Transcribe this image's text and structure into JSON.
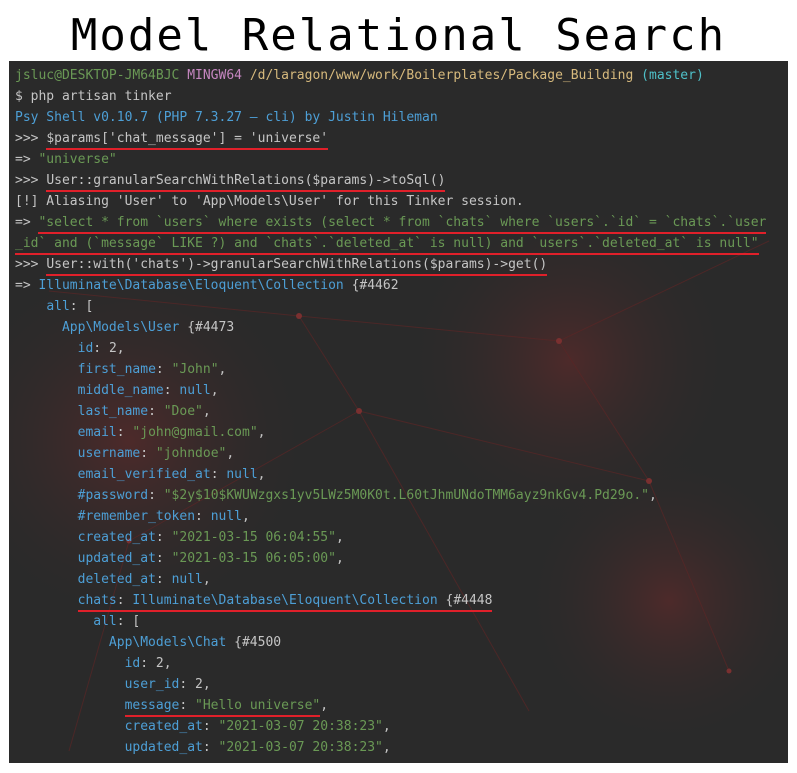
{
  "title": "Model Relational Search",
  "prompt": {
    "user": "jsluc@DESKTOP-JM64BJC",
    "env": "MINGW64",
    "path": "/d/laragon/www/work/Boilerplates/Package_Building",
    "branch": "(master)"
  },
  "cmd1": "$ php artisan tinker",
  "psy": "Psy Shell v0.10.7 (PHP 7.3.27 — cli) by Justin Hileman",
  "in1_prompt": ">>> ",
  "in1_code": "$params['chat_message'] = 'universe'",
  "out1_arrow": "=> ",
  "out1_value": "\"universe\"",
  "in2_prompt": ">>> ",
  "in2_code": "User::granularSearchWithRelations($params)->toSql()",
  "alias_note": "[!] Aliasing 'User' to 'App\\Models\\User' for this Tinker session.",
  "out2_arrow": "=> ",
  "sql_line1": "\"select * from `users` where exists (select * from `chats` where `users`.`id` = `chats`.`user",
  "sql_line2": "_id` and (`message` LIKE ?) and `chats`.`deleted_at` is null) and `users`.`deleted_at` is null\"",
  "in3_prompt": ">>> ",
  "in3_code": "User::with('chats')->granularSearchWithRelations($params)->get()",
  "out3_arrow": "=> ",
  "collection1": "Illuminate\\Database\\Eloquent\\Collection",
  "collection1_id": "{#4462",
  "all_key": "all",
  "all_open": ": [",
  "user_model": "App\\Models\\User",
  "user_model_id": "{#4473",
  "user_fields": [
    {
      "key": "id",
      "value": "2",
      "kind": "num"
    },
    {
      "key": "first_name",
      "value": "\"John\"",
      "kind": "str"
    },
    {
      "key": "middle_name",
      "value": "null",
      "kind": "null"
    },
    {
      "key": "last_name",
      "value": "\"Doe\"",
      "kind": "str"
    },
    {
      "key": "email",
      "value": "\"john@gmail.com\"",
      "kind": "str"
    },
    {
      "key": "username",
      "value": "\"johndoe\"",
      "kind": "str"
    },
    {
      "key": "email_verified_at",
      "value": "null",
      "kind": "null"
    },
    {
      "key": "#password",
      "value": "\"$2y$10$KWUWzgxs1yv5LWz5M0K0t.L60tJhmUNdoTMM6ayz9nkGv4.Pd29o.\"",
      "kind": "str"
    },
    {
      "key": "#remember_token",
      "value": "null",
      "kind": "null"
    },
    {
      "key": "created_at",
      "value": "\"2021-03-15 06:04:55\"",
      "kind": "str"
    },
    {
      "key": "updated_at",
      "value": "\"2021-03-15 06:05:00\"",
      "kind": "str"
    },
    {
      "key": "deleted_at",
      "value": "null",
      "kind": "null"
    }
  ],
  "chats_key": "chats",
  "chats_collection": "Illuminate\\Database\\Eloquent\\Collection",
  "chats_collection_id": "{#4448",
  "chats_all_key": "all",
  "chats_all_open": ": [",
  "chat_model": "App\\Models\\Chat",
  "chat_model_id": "{#4500",
  "chat_fields": [
    {
      "key": "id",
      "value": "2",
      "kind": "num"
    },
    {
      "key": "user_id",
      "value": "2",
      "kind": "num"
    },
    {
      "key": "message",
      "value": "\"Hello universe\"",
      "kind": "str"
    },
    {
      "key": "created_at",
      "value": "\"2021-03-07 20:38:23\"",
      "kind": "str"
    },
    {
      "key": "updated_at",
      "value": "\"2021-03-07 20:38:23\"",
      "kind": "str"
    }
  ],
  "colors": {
    "terminal_bg": "#2a2a2a",
    "underline": "#e0202a",
    "string": "#6a9955",
    "keyword": "#4d9fd6",
    "path": "#d7ba7d",
    "branch": "#4fc1c9",
    "env": "#c586c0"
  }
}
